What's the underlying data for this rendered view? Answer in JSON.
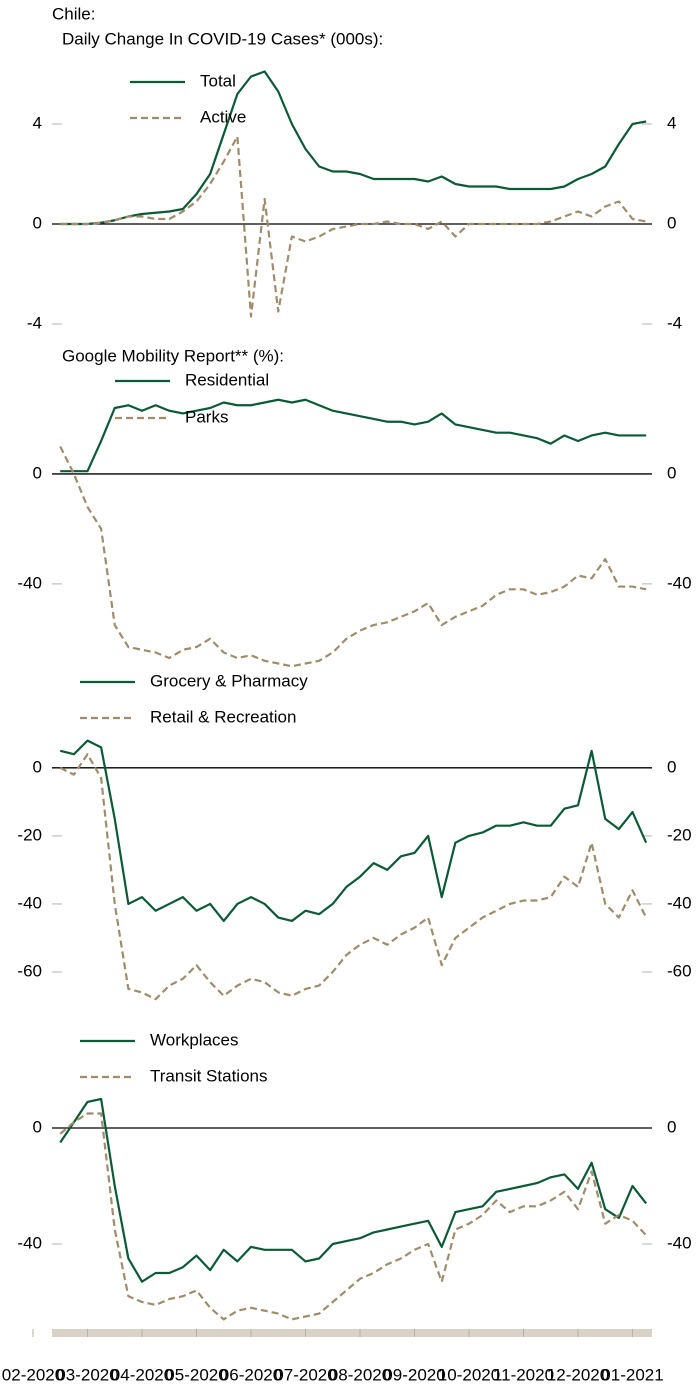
{
  "chart_data": [
    {
      "type": "line",
      "title": "Chile:",
      "subtitle": "Daily Change In COVID-19 Cases* (000s):",
      "ylim": [
        -4,
        6.8
      ],
      "yticks": [
        -4,
        0,
        4
      ],
      "series": [
        {
          "name": "Total",
          "color": "#0b5a36",
          "dash": false,
          "values": [
            null,
            null,
            0,
            0,
            0,
            0.05,
            0.15,
            0.3,
            0.4,
            0.45,
            0.5,
            0.6,
            1.2,
            2.0,
            3.6,
            5.2,
            5.9,
            6.1,
            5.3,
            4.0,
            3.0,
            2.3,
            2.1,
            2.1,
            2.0,
            1.8,
            1.8,
            1.8,
            1.8,
            1.7,
            1.9,
            1.6,
            1.5,
            1.5,
            1.5,
            1.4,
            1.4,
            1.4,
            1.4,
            1.5,
            1.8,
            2.0,
            2.3,
            3.2,
            4.0,
            4.1
          ]
        },
        {
          "name": "Active",
          "color": "#a08c6a",
          "dash": true,
          "values": [
            null,
            null,
            0,
            0,
            0,
            0.05,
            0.15,
            0.3,
            0.3,
            0.2,
            0.2,
            0.5,
            0.9,
            1.6,
            2.5,
            3.5,
            -3.7,
            1.0,
            -3.5,
            -0.5,
            -0.7,
            -0.5,
            -0.2,
            -0.1,
            0,
            0,
            0.1,
            0,
            0,
            -0.2,
            0.1,
            -0.5,
            0,
            0,
            0,
            0,
            0,
            0,
            0.1,
            0.3,
            0.5,
            0.3,
            0.7,
            0.9,
            0.2,
            0.1
          ]
        }
      ]
    },
    {
      "type": "line",
      "title": "Google Mobility Report** (%):",
      "ylim": [
        -75,
        30
      ],
      "yticks": [
        -40,
        0
      ],
      "series": [
        {
          "name": "Residential",
          "color": "#0b5a36",
          "dash": false,
          "values": [
            null,
            null,
            1,
            1,
            1,
            12,
            24,
            25,
            23,
            25,
            23,
            22,
            23,
            24,
            26,
            25,
            25,
            26,
            27,
            26,
            27,
            25,
            23,
            22,
            21,
            20,
            19,
            19,
            18,
            19,
            22,
            18,
            17,
            16,
            15,
            15,
            14,
            13,
            11,
            14,
            12,
            14,
            15,
            14,
            14,
            14
          ]
        },
        {
          "name": "Parks",
          "color": "#a08c6a",
          "dash": true,
          "values": [
            null,
            null,
            10,
            0,
            -12,
            -20,
            -55,
            -63,
            -64,
            -65,
            -67,
            -64,
            -63,
            -60,
            -65,
            -67,
            -66,
            -68,
            -69,
            -70,
            -69,
            -68,
            -65,
            -60,
            -57,
            -55,
            -54,
            -52,
            -50,
            -47,
            -55,
            -52,
            -50,
            -48,
            -44,
            -42,
            -42,
            -44,
            -43,
            -41,
            -37,
            -38,
            -31,
            -41,
            -41,
            -42
          ]
        }
      ]
    },
    {
      "type": "line",
      "ylim": [
        -70,
        12
      ],
      "yticks": [
        -60,
        -40,
        -20,
        0
      ],
      "series": [
        {
          "name": "Grocery & Pharmacy",
          "color": "#0b5a36",
          "dash": false,
          "values": [
            null,
            null,
            5,
            4,
            8,
            6,
            -15,
            -40,
            -38,
            -42,
            -40,
            -38,
            -42,
            -40,
            -45,
            -40,
            -38,
            -40,
            -44,
            -45,
            -42,
            -43,
            -40,
            -35,
            -32,
            -28,
            -30,
            -26,
            -25,
            -20,
            -38,
            -22,
            -20,
            -19,
            -17,
            -17,
            -16,
            -17,
            -17,
            -12,
            -11,
            5,
            -15,
            -18,
            -13,
            -22
          ]
        },
        {
          "name": "Retail & Recreation",
          "color": "#a08c6a",
          "dash": true,
          "values": [
            null,
            null,
            0,
            -2,
            4,
            -3,
            -40,
            -65,
            -66,
            -68,
            -64,
            -62,
            -58,
            -63,
            -67,
            -64,
            -62,
            -63,
            -66,
            -67,
            -65,
            -64,
            -60,
            -55,
            -52,
            -50,
            -52,
            -49,
            -47,
            -44,
            -58,
            -50,
            -47,
            -44,
            -42,
            -40,
            -39,
            -39,
            -38,
            -32,
            -35,
            -22,
            -40,
            -44,
            -36,
            -44
          ]
        }
      ]
    },
    {
      "type": "line",
      "ylim": [
        -72,
        14
      ],
      "yticks": [
        -40,
        0
      ],
      "categories": [
        "02-2020",
        null,
        null,
        null,
        "03-2020",
        null,
        null,
        null,
        "04-2020",
        null,
        null,
        null,
        "05-2020",
        null,
        null,
        null,
        "06-2020",
        null,
        null,
        null,
        "07-2020",
        null,
        null,
        null,
        "08-2020",
        null,
        null,
        null,
        "09-2020",
        null,
        null,
        null,
        "10-2020",
        null,
        null,
        null,
        "11-2020",
        null,
        null,
        null,
        "12-2020",
        null,
        null,
        null,
        "01-2021",
        null
      ],
      "series": [
        {
          "name": "Workplaces",
          "color": "#0b5a36",
          "dash": false,
          "values": [
            null,
            null,
            -5,
            2,
            9,
            10,
            -20,
            -45,
            -53,
            -50,
            -50,
            -48,
            -44,
            -49,
            -42,
            -46,
            -41,
            -42,
            -42,
            -42,
            -46,
            -45,
            -40,
            -39,
            -38,
            -36,
            -35,
            -34,
            -33,
            -32,
            -41,
            -29,
            -28,
            -27,
            -22,
            -21,
            -20,
            -19,
            -17,
            -16,
            -21,
            -12,
            -28,
            -31,
            -20,
            -26
          ]
        },
        {
          "name": "Transit Stations",
          "color": "#a08c6a",
          "dash": true,
          "values": [
            null,
            null,
            -2,
            2,
            5,
            5,
            -35,
            -58,
            -60,
            -61,
            -59,
            -58,
            -56,
            -62,
            -66,
            -63,
            -62,
            -63,
            -64,
            -66,
            -65,
            -64,
            -60,
            -56,
            -52,
            -50,
            -47,
            -45,
            -42,
            -40,
            -53,
            -35,
            -33,
            -30,
            -25,
            -29,
            -27,
            -27,
            -25,
            -22,
            -28,
            -15,
            -33,
            -30,
            -32,
            -37
          ]
        }
      ]
    }
  ]
}
